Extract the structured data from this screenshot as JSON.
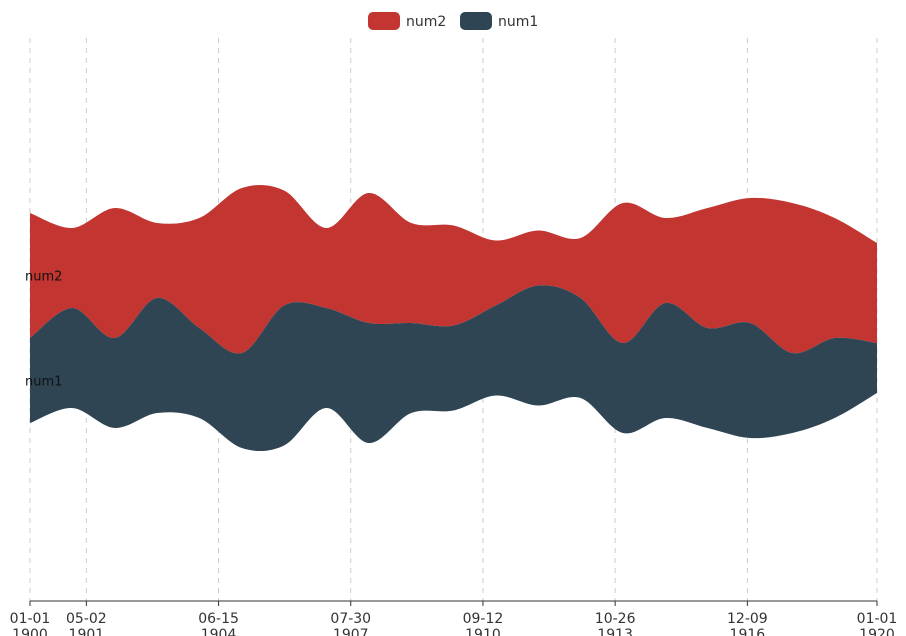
{
  "chart_data": {
    "type": "area",
    "subtype": "themeriver",
    "title": "",
    "legend": {
      "position": "top-center",
      "items": [
        {
          "name": "num2",
          "color": "#c23531"
        },
        {
          "name": "num1",
          "color": "#2f4554"
        }
      ]
    },
    "x_ticks": [
      {
        "label": "01-01\n1900",
        "date": "1900-01-01"
      },
      {
        "label": "05-02\n1901",
        "date": "1901-05-02"
      },
      {
        "label": "06-15\n1904",
        "date": "1904-06-15"
      },
      {
        "label": "07-30\n1907",
        "date": "1907-07-30"
      },
      {
        "label": "09-12\n1910",
        "date": "1910-09-12"
      },
      {
        "label": "10-26\n1913",
        "date": "1913-10-26"
      },
      {
        "label": "12-09\n1916",
        "date": "1916-12-09"
      },
      {
        "label": "01-01\n1920",
        "date": "1920-01-01"
      }
    ],
    "dates": [
      "1900-01-01",
      "1901-01-01",
      "1902-01-01",
      "1903-01-01",
      "1904-01-01",
      "1905-01-01",
      "1906-01-01",
      "1907-01-01",
      "1908-01-01",
      "1909-01-01",
      "1910-01-01",
      "1911-01-01",
      "1912-01-01",
      "1913-01-01",
      "1914-01-01",
      "1915-01-01",
      "1916-01-01",
      "1917-01-01",
      "1918-01-01",
      "1919-01-01",
      "1920-01-01"
    ],
    "series": [
      {
        "name": "num1",
        "color": "#2f4554",
        "values": [
          17,
          20,
          18,
          23,
          18,
          19,
          28,
          20,
          24,
          18,
          17,
          18,
          24,
          20,
          18,
          23,
          20,
          23,
          16,
          16,
          10
        ]
      },
      {
        "name": "num2",
        "color": "#c23531",
        "values": [
          25,
          16,
          26,
          15,
          22,
          33,
          23,
          16,
          26,
          20,
          20,
          13,
          11,
          12,
          28,
          17,
          24,
          25,
          30,
          24,
          20
        ]
      }
    ]
  }
}
